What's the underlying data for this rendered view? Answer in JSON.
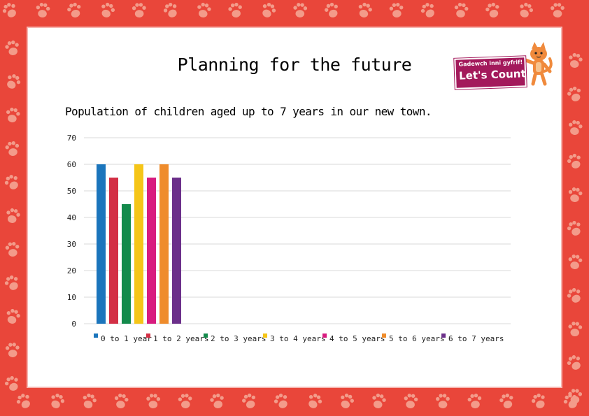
{
  "title": "Planning for the future",
  "subtitle": "Population of children aged up to 7 years in our new town.",
  "logo": {
    "line1": "Gadewch inni gyfrif!",
    "line2": "Let's Count!",
    "color": "#a3195b"
  },
  "border": {
    "background": "#e9463a",
    "pattern_color": "#f39b8a"
  },
  "chart_data": {
    "type": "bar",
    "categories": [
      "0 to 1 year",
      "1 to 2 years",
      "2 to 3 years",
      "3 to 4 years",
      "4 to 5 years",
      "5 to 6 years",
      "6 to 7 years"
    ],
    "values": [
      60,
      55,
      45,
      60,
      55,
      60,
      55
    ],
    "colors": [
      "#1b75bc",
      "#d32f45",
      "#138a4b",
      "#f5c518",
      "#d81b7f",
      "#ef8c2c",
      "#6b2f8a"
    ],
    "ylim": [
      0,
      70
    ],
    "yticks": [
      0,
      10,
      20,
      30,
      40,
      50,
      60,
      70
    ],
    "grid": true,
    "legend": "bottom",
    "xlabel": "",
    "ylabel": ""
  }
}
